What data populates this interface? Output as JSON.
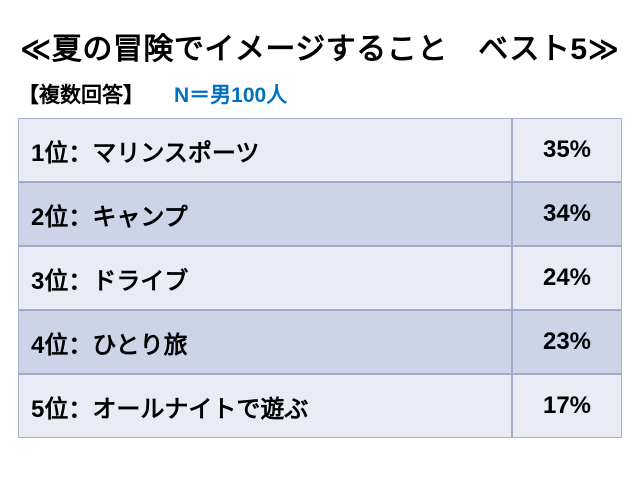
{
  "title": "≪夏の冒険でイメージすること　ベスト5≫",
  "subtitle": {
    "note": "【複数回答】",
    "sample": "N＝男100人"
  },
  "colors": {
    "n_text_blue": "#0070C0",
    "row_light": "#E9EBF5",
    "row_dark": "#CED4E8",
    "table_border": "#A0ABC9",
    "text": "#000000",
    "background": "#FFFFFF"
  },
  "table": {
    "rows": [
      {
        "label": "1位：マリンスポーツ",
        "value": "35%"
      },
      {
        "label": "2位：キャンプ",
        "value": "34%"
      },
      {
        "label": "3位：ドライブ",
        "value": "24%"
      },
      {
        "label": "4位：ひとり旅",
        "value": "23%"
      },
      {
        "label": "5位：オールナイトで遊ぶ",
        "value": "17%"
      }
    ]
  },
  "chart_data": {
    "type": "table",
    "title": "≪夏の冒険でイメージすること　ベスト5≫",
    "note": "【複数回答】",
    "sample_size": "N＝男100人",
    "categories": [
      "1位：マリンスポーツ",
      "2位：キャンプ",
      "3位：ドライブ",
      "4位：ひとり旅",
      "5位：オールナイトで遊ぶ"
    ],
    "values": [
      35,
      34,
      24,
      23,
      17
    ],
    "unit": "%",
    "layout": "ranked banded table, label column left, percent column right"
  }
}
